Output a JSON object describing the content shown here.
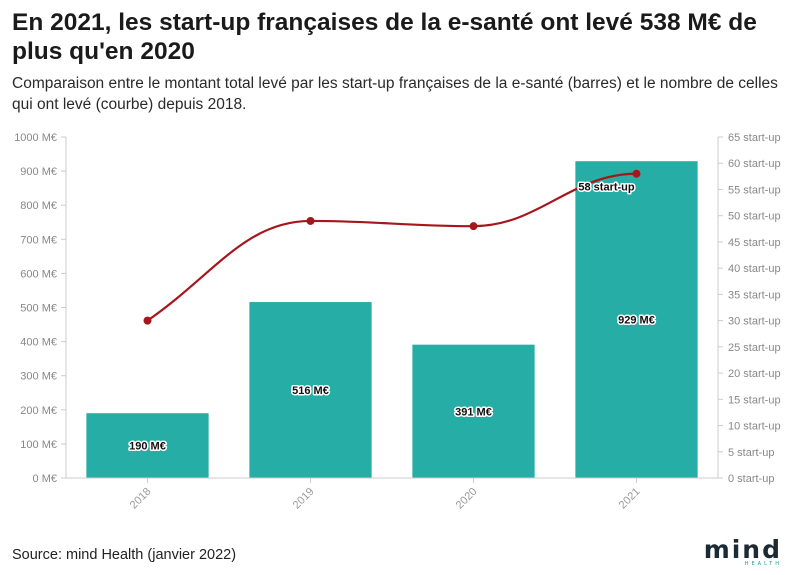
{
  "header": {
    "title": "En 2021, les start-up françaises de la e-santé ont levé 538 M€ de plus qu'en 2020",
    "subtitle": "Comparaison entre le montant total levé par les start-up françaises de la e-santé (barres) et le nombre de celles qui ont levé (courbe) depuis 2018."
  },
  "footer": {
    "source": "Source: mind Health (janvier 2022)",
    "logo_word": "mind",
    "logo_sub": "HEALTH"
  },
  "colors": {
    "bar": "#26ada5",
    "line": "#a6171d",
    "grid": "#e6e6e6",
    "axis": "#cccccc"
  },
  "chart_data": {
    "type": "bar",
    "categories": [
      "2018",
      "2019",
      "2020",
      "2021"
    ],
    "series": [
      {
        "kind": "bar",
        "axis": "left",
        "values": [
          190,
          516,
          391,
          929
        ],
        "labels": [
          "190 M€",
          "516 M€",
          "391 M€",
          "929 M€"
        ]
      },
      {
        "kind": "line",
        "axis": "right",
        "values": [
          30,
          49,
          48,
          58
        ],
        "labels": [
          "",
          "",
          "",
          "58 start-up"
        ]
      }
    ],
    "y_left": {
      "min": 0,
      "max": 1000,
      "step": 100,
      "ticks": [
        "0 M€",
        "100 M€",
        "200 M€",
        "300 M€",
        "400 M€",
        "500 M€",
        "600 M€",
        "700 M€",
        "800 M€",
        "900 M€",
        "1000 M€"
      ]
    },
    "y_right": {
      "min": 0,
      "max": 65,
      "step": 5,
      "ticks": [
        "0 start-up",
        "5 start-up",
        "10 start-up",
        "15 start-up",
        "20 start-up",
        "25 start-up",
        "30 start-up",
        "35 start-up",
        "40 start-up",
        "45 start-up",
        "50 start-up",
        "55 start-up",
        "60 start-up",
        "65 start-up"
      ]
    },
    "grid": false
  }
}
